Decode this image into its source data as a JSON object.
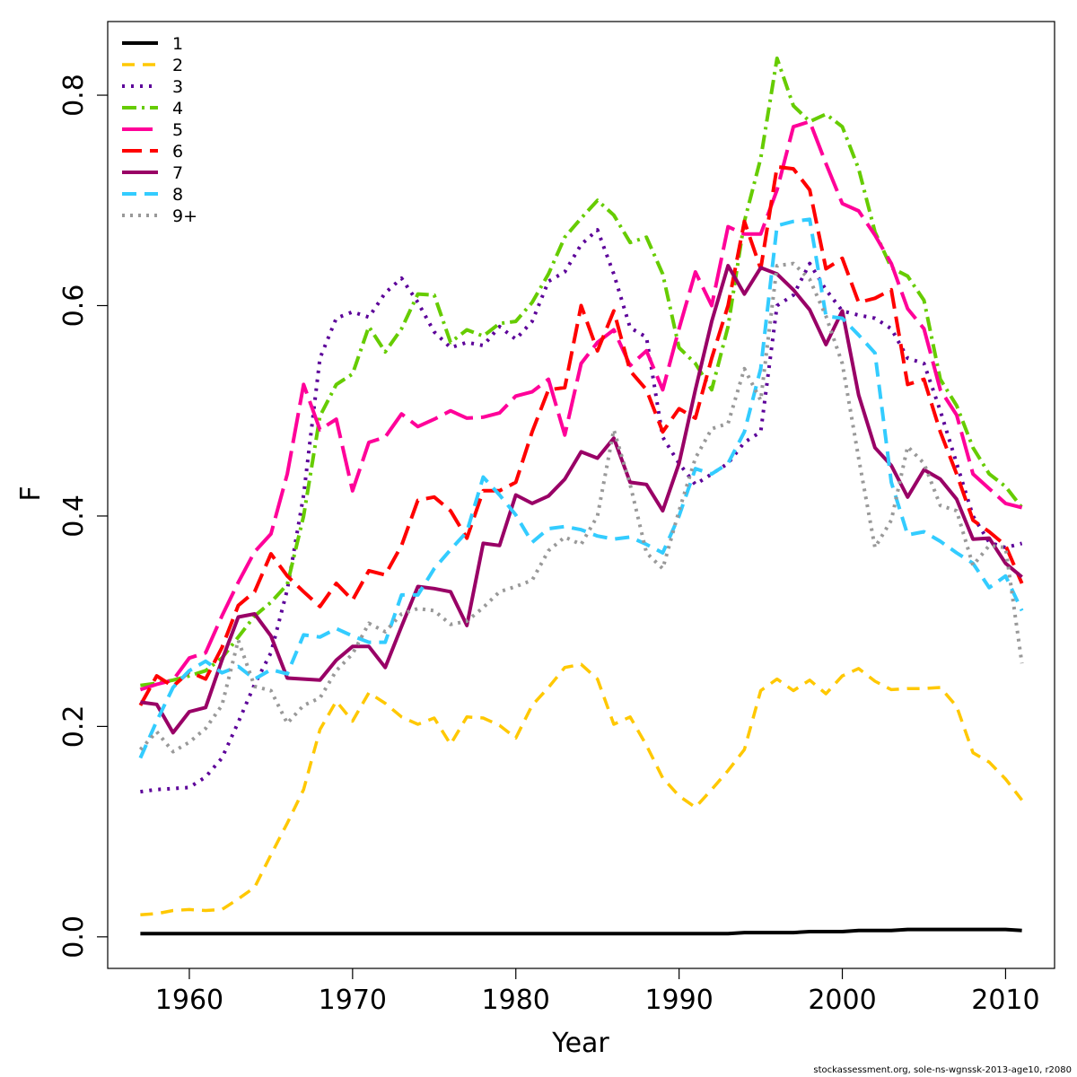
{
  "chart_data": {
    "type": "line",
    "xlabel": "Year",
    "ylabel": "F",
    "xlim": [
      1955,
      2013
    ],
    "ylim": [
      -0.03,
      0.87
    ],
    "xticks": [
      "1960",
      "1970",
      "1980",
      "1990",
      "2000",
      "2010"
    ],
    "yticks": [
      "0.0",
      "0.2",
      "0.4",
      "0.6",
      "0.8"
    ],
    "legend_position": "top-left",
    "grid": false,
    "x": [
      1957,
      1958,
      1959,
      1960,
      1961,
      1962,
      1963,
      1964,
      1965,
      1966,
      1967,
      1968,
      1969,
      1970,
      1971,
      1972,
      1973,
      1974,
      1975,
      1976,
      1977,
      1978,
      1979,
      1980,
      1981,
      1982,
      1983,
      1984,
      1985,
      1986,
      1987,
      1988,
      1989,
      1990,
      1991,
      1992,
      1993,
      1994,
      1995,
      1996,
      1997,
      1998,
      1999,
      2000,
      2001,
      2002,
      2003,
      2004,
      2005,
      2006,
      2007,
      2008,
      2009,
      2010,
      2011
    ],
    "series": [
      {
        "name": "1",
        "color": "#000000",
        "dash": "",
        "width": 4,
        "values": [
          0.003,
          0.003,
          0.003,
          0.003,
          0.003,
          0.003,
          0.003,
          0.003,
          0.003,
          0.003,
          0.003,
          0.003,
          0.003,
          0.003,
          0.003,
          0.003,
          0.003,
          0.003,
          0.003,
          0.003,
          0.003,
          0.003,
          0.003,
          0.003,
          0.003,
          0.003,
          0.003,
          0.003,
          0.003,
          0.003,
          0.003,
          0.003,
          0.003,
          0.003,
          0.003,
          0.003,
          0.003,
          0.004,
          0.004,
          0.004,
          0.004,
          0.005,
          0.005,
          0.005,
          0.006,
          0.006,
          0.006,
          0.007,
          0.007,
          0.007,
          0.007,
          0.007,
          0.007,
          0.007,
          0.006
        ]
      },
      {
        "name": "2",
        "color": "#ffc800",
        "dash": "14,9",
        "width": 3.5,
        "values": [
          0.021,
          0.022,
          0.025,
          0.026,
          0.025,
          0.026,
          0.036,
          0.047,
          0.078,
          0.108,
          0.14,
          0.197,
          0.224,
          0.205,
          0.232,
          0.222,
          0.209,
          0.202,
          0.208,
          0.183,
          0.209,
          0.208,
          0.201,
          0.189,
          0.22,
          0.237,
          0.256,
          0.259,
          0.245,
          0.202,
          0.209,
          0.182,
          0.151,
          0.134,
          0.123,
          0.14,
          0.158,
          0.178,
          0.234,
          0.245,
          0.234,
          0.244,
          0.231,
          0.248,
          0.255,
          0.243,
          0.235,
          0.236,
          0.236,
          0.237,
          0.219,
          0.175,
          0.166,
          0.15,
          0.13
        ]
      },
      {
        "name": "3",
        "color": "#5c0099",
        "dash": "3,7",
        "width": 4,
        "values": [
          0.138,
          0.14,
          0.141,
          0.142,
          0.152,
          0.17,
          0.204,
          0.24,
          0.27,
          0.33,
          0.42,
          0.55,
          0.588,
          0.594,
          0.589,
          0.612,
          0.626,
          0.603,
          0.575,
          0.56,
          0.565,
          0.562,
          0.58,
          0.568,
          0.585,
          0.623,
          0.632,
          0.658,
          0.672,
          0.63,
          0.579,
          0.57,
          0.475,
          0.45,
          0.43,
          0.44,
          0.45,
          0.47,
          0.48,
          0.6,
          0.61,
          0.64,
          0.615,
          0.595,
          0.591,
          0.588,
          0.578,
          0.55,
          0.545,
          0.5,
          0.45,
          0.4,
          0.375,
          0.37,
          0.374
        ]
      },
      {
        "name": "4",
        "color": "#66cc00",
        "dash": "16,6,3,6",
        "width": 4,
        "values": [
          0.239,
          0.241,
          0.244,
          0.248,
          0.253,
          0.265,
          0.285,
          0.305,
          0.318,
          0.335,
          0.4,
          0.495,
          0.525,
          0.535,
          0.58,
          0.556,
          0.578,
          0.611,
          0.61,
          0.565,
          0.577,
          0.571,
          0.583,
          0.585,
          0.603,
          0.63,
          0.665,
          0.683,
          0.7,
          0.686,
          0.66,
          0.665,
          0.63,
          0.56,
          0.545,
          0.52,
          0.58,
          0.68,
          0.74,
          0.835,
          0.79,
          0.775,
          0.782,
          0.77,
          0.73,
          0.67,
          0.636,
          0.628,
          0.605,
          0.53,
          0.505,
          0.465,
          0.44,
          0.428,
          0.408
        ]
      },
      {
        "name": "5",
        "color": "#ff0099",
        "dash": "34,9",
        "width": 4,
        "values": [
          0.235,
          0.24,
          0.244,
          0.265,
          0.27,
          0.305,
          0.337,
          0.366,
          0.383,
          0.44,
          0.525,
          0.482,
          0.492,
          0.424,
          0.47,
          0.475,
          0.497,
          0.485,
          0.492,
          0.5,
          0.493,
          0.494,
          0.498,
          0.514,
          0.518,
          0.53,
          0.477,
          0.545,
          0.565,
          0.577,
          0.543,
          0.557,
          0.52,
          0.578,
          0.632,
          0.6,
          0.675,
          0.668,
          0.668,
          0.71,
          0.77,
          0.775,
          0.735,
          0.697,
          0.69,
          0.667,
          0.64,
          0.597,
          0.578,
          0.52,
          0.496,
          0.44,
          0.426,
          0.412,
          0.408
        ]
      },
      {
        "name": "6",
        "color": "#ff0000",
        "dash": "22,9",
        "width": 4,
        "values": [
          0.22,
          0.248,
          0.238,
          0.252,
          0.245,
          0.275,
          0.315,
          0.328,
          0.364,
          0.343,
          0.328,
          0.314,
          0.336,
          0.32,
          0.348,
          0.344,
          0.372,
          0.415,
          0.418,
          0.405,
          0.379,
          0.424,
          0.424,
          0.432,
          0.48,
          0.52,
          0.522,
          0.6,
          0.557,
          0.595,
          0.538,
          0.52,
          0.48,
          0.502,
          0.493,
          0.55,
          0.6,
          0.68,
          0.635,
          0.732,
          0.73,
          0.71,
          0.635,
          0.645,
          0.603,
          0.607,
          0.615,
          0.525,
          0.53,
          0.48,
          0.44,
          0.396,
          0.385,
          0.372,
          0.336
        ]
      },
      {
        "name": "7",
        "color": "#990066",
        "dash": "",
        "width": 4,
        "values": [
          0.223,
          0.221,
          0.194,
          0.214,
          0.218,
          0.263,
          0.304,
          0.307,
          0.286,
          0.246,
          0.245,
          0.244,
          0.263,
          0.276,
          0.276,
          0.256,
          0.295,
          0.333,
          0.331,
          0.328,
          0.296,
          0.374,
          0.372,
          0.42,
          0.412,
          0.419,
          0.435,
          0.461,
          0.455,
          0.474,
          0.432,
          0.43,
          0.405,
          0.45,
          0.52,
          0.585,
          0.638,
          0.611,
          0.636,
          0.63,
          0.615,
          0.596,
          0.563,
          0.595,
          0.515,
          0.465,
          0.448,
          0.418,
          0.444,
          0.435,
          0.416,
          0.378,
          0.379,
          0.355,
          0.342
        ]
      },
      {
        "name": "8",
        "color": "#33ccff",
        "dash": "16,9",
        "width": 4,
        "values": [
          0.17,
          0.205,
          0.237,
          0.253,
          0.262,
          0.251,
          0.257,
          0.245,
          0.254,
          0.25,
          0.287,
          0.285,
          0.293,
          0.286,
          0.28,
          0.28,
          0.325,
          0.325,
          0.35,
          0.368,
          0.385,
          0.437,
          0.42,
          0.401,
          0.375,
          0.388,
          0.39,
          0.387,
          0.381,
          0.378,
          0.38,
          0.373,
          0.365,
          0.4,
          0.445,
          0.44,
          0.45,
          0.48,
          0.54,
          0.676,
          0.68,
          0.682,
          0.59,
          0.588,
          0.572,
          0.555,
          0.432,
          0.382,
          0.385,
          0.376,
          0.365,
          0.355,
          0.332,
          0.343,
          0.31
        ]
      },
      {
        "name": "9+",
        "color": "#999999",
        "dash": "3,6",
        "width": 4,
        "values": [
          0.178,
          0.195,
          0.176,
          0.185,
          0.198,
          0.22,
          0.282,
          0.238,
          0.234,
          0.203,
          0.22,
          0.227,
          0.253,
          0.269,
          0.298,
          0.29,
          0.307,
          0.312,
          0.31,
          0.297,
          0.3,
          0.313,
          0.328,
          0.333,
          0.339,
          0.367,
          0.38,
          0.373,
          0.4,
          0.482,
          0.43,
          0.365,
          0.35,
          0.405,
          0.455,
          0.483,
          0.488,
          0.54,
          0.51,
          0.638,
          0.64,
          0.625,
          0.59,
          0.545,
          0.455,
          0.37,
          0.396,
          0.466,
          0.45,
          0.41,
          0.405,
          0.353,
          0.372,
          0.37,
          0.26
        ]
      }
    ]
  },
  "footer": "stockassessment.org, sole-ns-wgnssk-2013-age10, r2080"
}
